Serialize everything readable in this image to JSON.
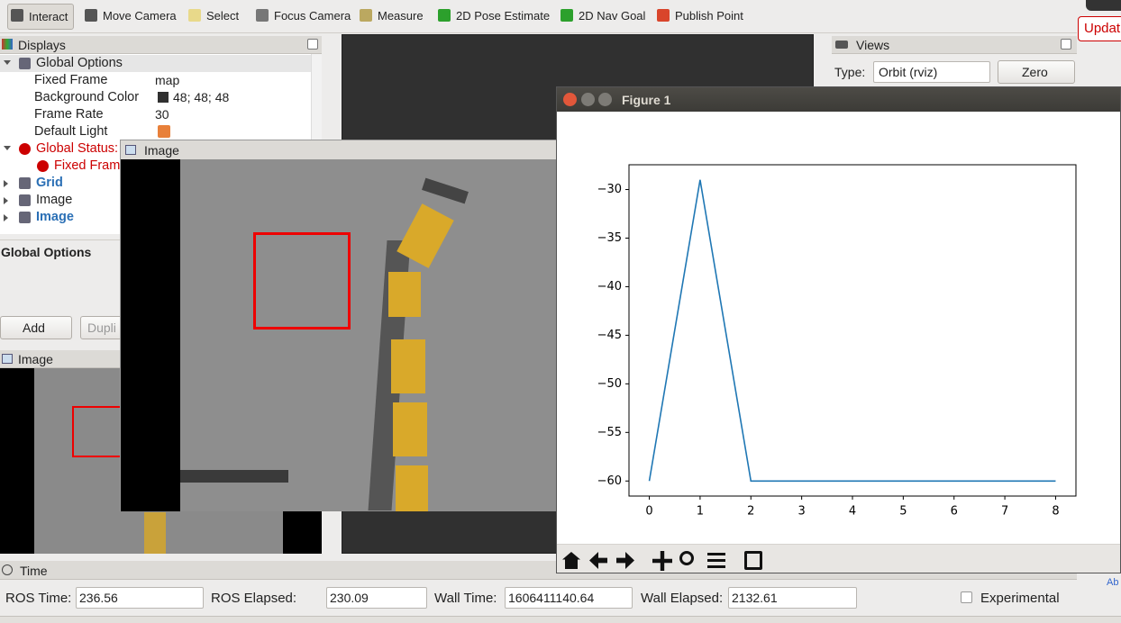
{
  "toolbar": {
    "tools": [
      "Interact",
      "Move Camera",
      "Select",
      "Focus Camera",
      "Measure",
      "2D Pose Estimate",
      "2D Nav Goal",
      "Publish Point"
    ],
    "update_button": "Updat"
  },
  "displays": {
    "title": "Displays",
    "rows": [
      {
        "label": "Global Options"
      },
      {
        "label": "Fixed Frame",
        "value": "map"
      },
      {
        "label": "Background Color",
        "value": "48; 48; 48"
      },
      {
        "label": "Frame Rate",
        "value": "30"
      },
      {
        "label": "Default Light"
      },
      {
        "label": "Global Status:"
      },
      {
        "label": "Fixed Fram"
      },
      {
        "label": "Grid"
      },
      {
        "label": "Image"
      },
      {
        "label": "Image"
      }
    ],
    "description_title": "Global Options",
    "buttons": [
      "Add",
      "Dupli"
    ]
  },
  "image_panel": {
    "title": "Image"
  },
  "image_window": {
    "title": "Image"
  },
  "views": {
    "title": "Views",
    "type_label": "Type:",
    "type_value": "Orbit (rviz)",
    "zero_button": "Zero"
  },
  "figure": {
    "title": "Figure 1"
  },
  "chart_data": {
    "type": "line",
    "x": [
      0,
      1,
      2,
      3,
      4,
      5,
      6,
      7,
      8
    ],
    "values": [
      -60,
      -29,
      -60,
      -60,
      -60,
      -60,
      -60,
      -60,
      -60
    ],
    "color": "#1f77b4",
    "xlim": [
      -0.4,
      8.4
    ],
    "ylim": [
      -61.55,
      -27.45
    ],
    "xticks": [
      0,
      1,
      2,
      3,
      4,
      5,
      6,
      7,
      8
    ],
    "yticks": [
      {
        "value": -30,
        "label": "−30"
      },
      {
        "value": -35,
        "label": "−35"
      },
      {
        "value": -40,
        "label": "−40"
      },
      {
        "value": -45,
        "label": "−45"
      },
      {
        "value": -50,
        "label": "−50"
      },
      {
        "value": -55,
        "label": "−55"
      },
      {
        "value": -60,
        "label": "−60"
      }
    ]
  },
  "time": {
    "title": "Time",
    "fields": [
      {
        "label": "ROS Time:",
        "value": "236.56"
      },
      {
        "label": "ROS Elapsed:",
        "value": "230.09"
      },
      {
        "label": "Wall Time:",
        "value": "1606411140.64"
      },
      {
        "label": "Wall Elapsed:",
        "value": "2132.61"
      }
    ],
    "experimental": "Experimental"
  },
  "corner_text": "Ab"
}
